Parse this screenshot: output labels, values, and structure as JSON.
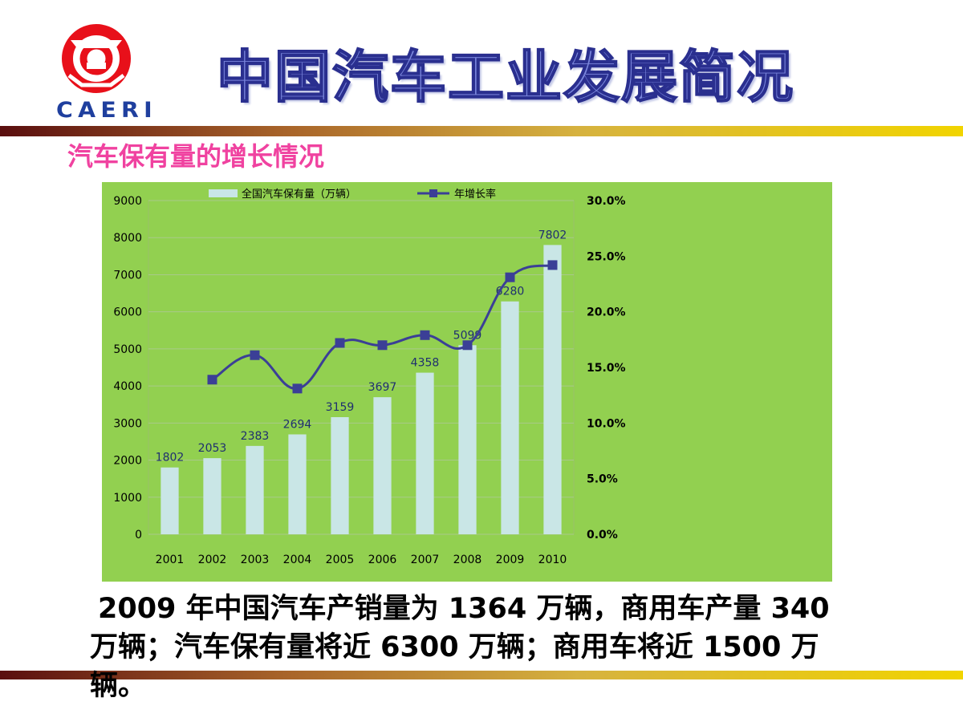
{
  "logo": {
    "text": "CAERI",
    "red": "#e8101a",
    "blue": "#1f3f9e"
  },
  "header": {
    "title": "中国汽车工业发展简况"
  },
  "subtitle": "汽车保有量的增长情况",
  "caption": "2009 年中国汽车产销量为 1364 万辆，商用车产量 340 万辆；汽车保有量将近 6300 万辆；商用车将近 1500 万辆。",
  "colors": {
    "panel": "#92d050",
    "bars": "#c9e6e6",
    "line": "#3b3f96",
    "subtitle": "#f042a0"
  },
  "chart_data": {
    "type": "bar",
    "categories": [
      "2001",
      "2002",
      "2003",
      "2004",
      "2005",
      "2006",
      "2007",
      "2008",
      "2009",
      "2010"
    ],
    "series": [
      {
        "name": "全国汽车保有量（万辆）",
        "type": "bar",
        "axis": "left",
        "values": [
          1802,
          2053,
          2383,
          2694,
          3159,
          3697,
          4358,
          5099,
          6280,
          7802
        ],
        "data_labels": [
          "1802",
          "2053",
          "2383",
          "2694",
          "3159",
          "3697",
          "4358",
          "5099",
          "6280",
          "7802"
        ]
      },
      {
        "name": "年增长率",
        "type": "line",
        "axis": "right",
        "values": [
          null,
          0.139,
          0.161,
          0.131,
          0.172,
          0.17,
          0.179,
          0.17,
          0.231,
          0.242
        ]
      }
    ],
    "y_left": {
      "ylim": [
        0,
        9000
      ],
      "ticks": [
        "0",
        "1000",
        "2000",
        "3000",
        "4000",
        "5000",
        "6000",
        "7000",
        "8000",
        "9000"
      ]
    },
    "y_right": {
      "ylim": [
        0,
        0.3
      ],
      "ticks": [
        "0.0%",
        "5.0%",
        "10.0%",
        "15.0%",
        "20.0%",
        "25.0%",
        "30.0%"
      ]
    },
    "grid": true,
    "legend_position": "top"
  }
}
